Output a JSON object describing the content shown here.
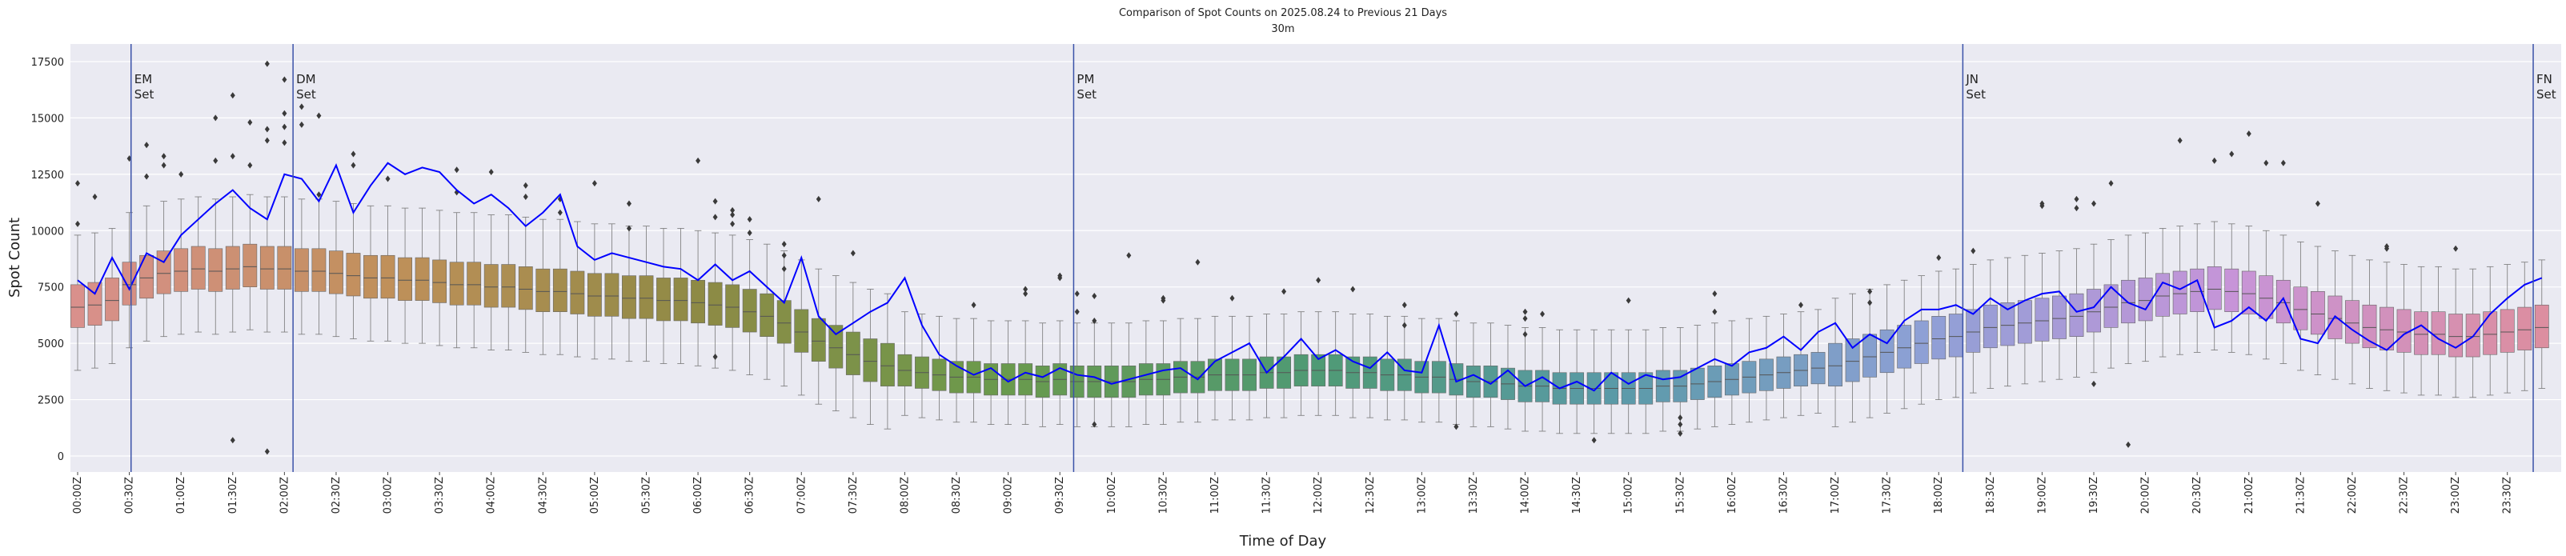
{
  "chart_data": {
    "type": "box",
    "title": "Comparison of Spot Counts on 2025.08.24 to Previous 21 Days",
    "subtitle": "30m",
    "x_label": "Time of Day",
    "y_label": "Spot Count",
    "ylim": [
      -710,
      18280
    ],
    "yticks": [
      0,
      2500,
      5000,
      7500,
      10000,
      12500,
      15000,
      17500
    ],
    "grid": true,
    "categories": [
      "00:00Z",
      null,
      null,
      "00:30Z",
      null,
      null,
      "01:00Z",
      null,
      null,
      "01:30Z",
      null,
      null,
      "02:00Z",
      null,
      null,
      "02:30Z",
      null,
      null,
      "03:00Z",
      null,
      null,
      "03:30Z",
      null,
      null,
      "04:00Z",
      null,
      null,
      "04:30Z",
      null,
      null,
      "05:00Z",
      null,
      null,
      "05:30Z",
      null,
      null,
      "06:00Z",
      null,
      null,
      "06:30Z",
      null,
      null,
      "07:00Z",
      null,
      null,
      "07:30Z",
      null,
      null,
      "08:00Z",
      null,
      null,
      "08:30Z",
      null,
      null,
      "09:00Z",
      null,
      null,
      "09:30Z",
      null,
      null,
      "10:00Z",
      null,
      null,
      "10:30Z",
      null,
      null,
      "11:00Z",
      null,
      null,
      "11:30Z",
      null,
      null,
      "12:00Z",
      null,
      null,
      "12:30Z",
      null,
      null,
      "13:00Z",
      null,
      null,
      "13:30Z",
      null,
      null,
      "14:00Z",
      null,
      null,
      "14:30Z",
      null,
      null,
      "15:00Z",
      null,
      null,
      "15:30Z",
      null,
      null,
      "16:00Z",
      null,
      null,
      "16:30Z",
      null,
      null,
      "17:00Z",
      null,
      null,
      "17:30Z",
      null,
      null,
      "18:00Z",
      null,
      null,
      "18:30Z",
      null,
      null,
      "19:00Z",
      null,
      null,
      "19:30Z",
      null,
      null,
      "20:00Z",
      null,
      null,
      "20:30Z",
      null,
      null,
      "21:00Z",
      null,
      null,
      "21:30Z",
      null,
      null,
      "22:00Z",
      null,
      null,
      "22:30Z",
      null,
      null,
      "23:00Z",
      null,
      null,
      "23:30Z",
      null,
      null
    ],
    "box_palette": [
      "#d9908c",
      "#c0905a",
      "#8f8a45",
      "#6a9a4c",
      "#4f9a74",
      "#5a9aa8",
      "#8fa0d6",
      "#c794d8",
      "#dc8ea0"
    ],
    "boxes": {
      "median": [
        6600,
        6700,
        6900,
        7600,
        7900,
        8100,
        8200,
        8300,
        8200,
        8300,
        8400,
        8300,
        8300,
        8200,
        8200,
        8100,
        8000,
        7900,
        7900,
        7800,
        7800,
        7700,
        7600,
        7600,
        7500,
        7500,
        7400,
        7300,
        7300,
        7200,
        7100,
        7100,
        7000,
        7000,
        6900,
        6900,
        6800,
        6700,
        6600,
        6400,
        6200,
        5900,
        5500,
        5100,
        4800,
        4500,
        4200,
        4000,
        3800,
        3700,
        3600,
        3500,
        3500,
        3400,
        3400,
        3400,
        3300,
        3400,
        3300,
        3300,
        3300,
        3300,
        3400,
        3400,
        3500,
        3500,
        3600,
        3600,
        3600,
        3700,
        3700,
        3800,
        3800,
        3800,
        3700,
        3700,
        3600,
        3600,
        3500,
        3500,
        3400,
        3300,
        3300,
        3200,
        3100,
        3100,
        3000,
        3000,
        3000,
        3000,
        3000,
        3000,
        3100,
        3100,
        3200,
        3300,
        3400,
        3500,
        3600,
        3700,
        3800,
        3900,
        4000,
        4200,
        4400,
        4600,
        4800,
        5000,
        5200,
        5300,
        5500,
        5700,
        5800,
        5900,
        6000,
        6100,
        6200,
        6400,
        6600,
        6800,
        6900,
        7100,
        7200,
        7300,
        7400,
        7300,
        7200,
        7000,
        6800,
        6500,
        6300,
        6100,
        5900,
        5700,
        5600,
        5500,
        5400,
        5400,
        5300,
        5300,
        5400,
        5500,
        5600,
        5700
      ],
      "q1": [
        5700,
        5800,
        6000,
        6700,
        7000,
        7200,
        7300,
        7400,
        7300,
        7400,
        7500,
        7400,
        7400,
        7300,
        7300,
        7200,
        7100,
        7000,
        7000,
        6900,
        6900,
        6800,
        6700,
        6700,
        6600,
        6600,
        6500,
        6400,
        6400,
        6300,
        6200,
        6200,
        6100,
        6100,
        6000,
        6000,
        5900,
        5800,
        5700,
        5500,
        5300,
        5000,
        4600,
        4200,
        3900,
        3600,
        3300,
        3100,
        3100,
        3000,
        2900,
        2800,
        2800,
        2700,
        2700,
        2700,
        2600,
        2700,
        2600,
        2600,
        2600,
        2600,
        2700,
        2700,
        2800,
        2800,
        2900,
        2900,
        2900,
        3000,
        3000,
        3100,
        3100,
        3100,
        3000,
        3000,
        2900,
        2900,
        2800,
        2800,
        2700,
        2600,
        2600,
        2500,
        2400,
        2400,
        2300,
        2300,
        2300,
        2300,
        2300,
        2300,
        2400,
        2400,
        2500,
        2600,
        2700,
        2800,
        2900,
        3000,
        3100,
        3200,
        3100,
        3300,
        3500,
        3700,
        3900,
        4100,
        4300,
        4400,
        4600,
        4800,
        4900,
        5000,
        5100,
        5200,
        5300,
        5500,
        5700,
        5900,
        6000,
        6200,
        6300,
        6400,
        6500,
        6400,
        6300,
        6100,
        5900,
        5600,
        5400,
        5200,
        5000,
        4800,
        4700,
        4600,
        4500,
        4500,
        4400,
        4400,
        4500,
        4600,
        4700,
        4800
      ],
      "q3": [
        7600,
        7700,
        7900,
        8600,
        8900,
        9100,
        9200,
        9300,
        9200,
        9300,
        9400,
        9300,
        9300,
        9200,
        9200,
        9100,
        9000,
        8900,
        8900,
        8800,
        8800,
        8700,
        8600,
        8600,
        8500,
        8500,
        8400,
        8300,
        8300,
        8200,
        8100,
        8100,
        8000,
        8000,
        7900,
        7900,
        7800,
        7700,
        7600,
        7400,
        7200,
        6900,
        6500,
        6100,
        5800,
        5500,
        5200,
        5000,
        4500,
        4400,
        4300,
        4200,
        4200,
        4100,
        4100,
        4100,
        4000,
        4100,
        4000,
        4000,
        4000,
        4000,
        4100,
        4100,
        4200,
        4200,
        4300,
        4300,
        4300,
        4400,
        4400,
        4500,
        4500,
        4500,
        4400,
        4400,
        4300,
        4300,
        4200,
        4200,
        4100,
        4000,
        4000,
        3900,
        3800,
        3800,
        3700,
        3700,
        3700,
        3700,
        3700,
        3700,
        3800,
        3800,
        3900,
        4000,
        4100,
        4200,
        4300,
        4400,
        4500,
        4600,
        5000,
        5200,
        5400,
        5600,
        5800,
        6000,
        6200,
        6300,
        6500,
        6700,
        6800,
        6900,
        7000,
        7100,
        7200,
        7400,
        7600,
        7800,
        7900,
        8100,
        8200,
        8300,
        8400,
        8300,
        8200,
        8000,
        7800,
        7500,
        7300,
        7100,
        6900,
        6700,
        6600,
        6500,
        6400,
        6400,
        6300,
        6300,
        6400,
        6500,
        6600,
        6700
      ],
      "whislo": [
        3800,
        3900,
        4100,
        4800,
        5100,
        5300,
        5400,
        5500,
        5400,
        5500,
        5600,
        5500,
        5500,
        5400,
        5400,
        5300,
        5200,
        5100,
        5100,
        5000,
        5000,
        4900,
        4800,
        4800,
        4700,
        4700,
        4600,
        4500,
        4500,
        4400,
        4300,
        4300,
        4200,
        4200,
        4100,
        4100,
        4000,
        3900,
        3800,
        3600,
        3400,
        3100,
        2700,
        2300,
        2000,
        1700,
        1400,
        1200,
        1800,
        1700,
        1600,
        1500,
        1500,
        1400,
        1400,
        1400,
        1300,
        1400,
        1300,
        1300,
        1300,
        1300,
        1400,
        1400,
        1500,
        1500,
        1600,
        1600,
        1600,
        1700,
        1700,
        1800,
        1800,
        1800,
        1700,
        1700,
        1600,
        1600,
        1500,
        1500,
        1400,
        1300,
        1300,
        1200,
        1100,
        1100,
        1000,
        1000,
        1000,
        1000,
        1000,
        1000,
        1100,
        1100,
        1200,
        1300,
        1400,
        1500,
        1600,
        1700,
        1800,
        1900,
        1300,
        1500,
        1700,
        1900,
        2100,
        2300,
        2500,
        2600,
        2800,
        3000,
        3100,
        3200,
        3300,
        3400,
        3500,
        3700,
        3900,
        4100,
        4200,
        4400,
        4500,
        4600,
        4700,
        4600,
        4500,
        4300,
        4100,
        3800,
        3600,
        3400,
        3200,
        3000,
        2900,
        2800,
        2700,
        2700,
        2600,
        2600,
        2700,
        2800,
        2900,
        3000
      ],
      "whishi": [
        9800,
        9900,
        10100,
        10800,
        11100,
        11300,
        11400,
        11500,
        11400,
        11500,
        11600,
        11500,
        11500,
        11400,
        11400,
        11300,
        11200,
        11100,
        11100,
        11000,
        11000,
        10900,
        10800,
        10800,
        10700,
        10700,
        10600,
        10500,
        10500,
        10400,
        10300,
        10300,
        10200,
        10200,
        10100,
        10100,
        10000,
        9900,
        9800,
        9600,
        9400,
        9100,
        8700,
        8300,
        8000,
        7700,
        7400,
        7200,
        6400,
        6300,
        6200,
        6100,
        6100,
        6000,
        6000,
        6000,
        5900,
        6000,
        5900,
        5900,
        5900,
        5900,
        6000,
        6000,
        6100,
        6100,
        6200,
        6200,
        6200,
        6300,
        6300,
        6400,
        6400,
        6400,
        6300,
        6300,
        6200,
        6200,
        6100,
        6100,
        6000,
        5900,
        5900,
        5800,
        5700,
        5700,
        5600,
        5600,
        5600,
        5600,
        5600,
        5600,
        5700,
        5700,
        5800,
        5900,
        6000,
        6100,
        6200,
        6300,
        6400,
        6500,
        7000,
        7200,
        7400,
        7600,
        7800,
        8000,
        8200,
        8300,
        8500,
        8700,
        8800,
        8900,
        9000,
        9100,
        9200,
        9400,
        9600,
        9800,
        9900,
        10100,
        10200,
        10300,
        10400,
        10300,
        10200,
        10000,
        9800,
        9500,
        9300,
        9100,
        8900,
        8700,
        8600,
        8500,
        8400,
        8400,
        8300,
        8300,
        8400,
        8500,
        8600,
        8700
      ]
    },
    "outliers": [
      [
        12100,
        10300
      ],
      [
        11500
      ],
      [],
      [
        13200
      ],
      [
        13800,
        12400
      ],
      [
        13300,
        12900
      ],
      [
        12500
      ],
      [],
      [
        15000,
        13100
      ],
      [
        16000,
        13300,
        700
      ],
      [
        14800,
        12900
      ],
      [
        17400,
        14500,
        14000,
        200
      ],
      [
        16700,
        15200,
        14600,
        13900
      ],
      [
        15500,
        14700
      ],
      [
        15100,
        11600
      ],
      [],
      [
        13400,
        12900
      ],
      [],
      [
        12300
      ],
      [],
      [],
      [],
      [
        12700,
        11700
      ],
      [],
      [
        12600
      ],
      [],
      [
        12000,
        11500
      ],
      [],
      [
        11400,
        10800
      ],
      [],
      [
        12100
      ],
      [],
      [
        11200,
        10100
      ],
      [],
      [],
      [],
      [
        13100
      ],
      [
        11300,
        10600,
        4400
      ],
      [
        10900,
        10700,
        10300
      ],
      [
        10500,
        9900
      ],
      [],
      [
        9400,
        8900,
        8300
      ],
      [],
      [
        11400
      ],
      [],
      [
        9000
      ],
      [],
      [],
      [],
      [],
      [],
      [],
      [
        6700
      ],
      [],
      [],
      [
        7400,
        7200
      ],
      [],
      [
        8000,
        7900
      ],
      [
        7200,
        6400
      ],
      [
        7100,
        6000,
        1400
      ],
      [],
      [
        8900
      ],
      [],
      [
        7000,
        6900
      ],
      [],
      [
        8600
      ],
      [],
      [
        7000
      ],
      [],
      [],
      [
        7300
      ],
      [],
      [
        7800
      ],
      [],
      [
        7400
      ],
      [],
      [],
      [
        6700,
        5800
      ],
      [],
      [],
      [
        6300,
        1300
      ],
      [],
      [],
      [],
      [
        6400,
        6100,
        5400
      ],
      [
        6300
      ],
      [],
      [],
      [
        700
      ],
      [],
      [
        6900
      ],
      [],
      [],
      [
        1000,
        1700,
        1400
      ],
      [],
      [
        7200,
        6400
      ],
      [],
      [],
      [],
      [],
      [
        6700
      ],
      [],
      [],
      [],
      [
        7300,
        6800
      ],
      [],
      [],
      [],
      [
        8800
      ],
      [],
      [
        9100
      ],
      [],
      [],
      [],
      [
        11200,
        11100
      ],
      [],
      [
        11000,
        11400
      ],
      [
        11200,
        3200
      ],
      [
        12100
      ],
      [
        500
      ],
      [],
      [],
      [
        14000
      ],
      [],
      [
        13100
      ],
      [
        13400
      ],
      [
        14300
      ],
      [
        13000
      ],
      [
        13000
      ],
      [],
      [
        11200
      ],
      [],
      [],
      [],
      [
        9300,
        9200
      ],
      [],
      [],
      [],
      [
        9200
      ],
      [],
      [],
      [],
      [],
      []
    ],
    "line": {
      "color": "#0000ff",
      "values": [
        7800,
        7200,
        8800,
        7400,
        9000,
        8600,
        9800,
        10500,
        11200,
        11800,
        11000,
        10500,
        12500,
        12300,
        11300,
        12900,
        10800,
        12000,
        13000,
        12500,
        12800,
        12600,
        11800,
        11200,
        11600,
        11000,
        10200,
        10800,
        11600,
        9300,
        8700,
        9000,
        8800,
        8600,
        8400,
        8300,
        7800,
        8500,
        7800,
        8200,
        7500,
        6800,
        8800,
        6200,
        5400,
        5900,
        6400,
        6800,
        7900,
        5800,
        4500,
        4000,
        3600,
        3900,
        3300,
        3700,
        3500,
        3900,
        3600,
        3500,
        3200,
        3400,
        3600,
        3800,
        3900,
        3400,
        4200,
        4600,
        5000,
        3700,
        4400,
        5200,
        4300,
        4700,
        4200,
        3900,
        4600,
        3800,
        3700,
        5800,
        3300,
        3600,
        3200,
        3800,
        3100,
        3500,
        3000,
        3300,
        2900,
        3700,
        3200,
        3600,
        3400,
        3500,
        3900,
        4300,
        4000,
        4600,
        4800,
        5300,
        4700,
        5500,
        5900,
        4800,
        5400,
        5000,
        6000,
        6500,
        6500,
        6700,
        6300,
        7000,
        6500,
        6900,
        7200,
        7300,
        6400,
        6600,
        7500,
        6800,
        6500,
        7700,
        7400,
        7800,
        5700,
        6000,
        6600,
        6000,
        7000,
        5200,
        5000,
        6200,
        5600,
        5100,
        4700,
        5400,
        5800,
        5200,
        4800,
        5300,
        6300,
        7000,
        7600,
        7900
      ]
    },
    "event_color": "#3a52a8",
    "events": [
      {
        "label": [
          "EM",
          "Set"
        ],
        "x": 3.1
      },
      {
        "label": [
          "DM",
          "Set"
        ],
        "x": 12.5
      },
      {
        "label": [
          "PM",
          "Set"
        ],
        "x": 57.8
      },
      {
        "label": [
          "JN",
          "Set"
        ],
        "x": 109.4
      },
      {
        "label": [
          "FN",
          "Set"
        ],
        "x": 142.5
      }
    ]
  }
}
